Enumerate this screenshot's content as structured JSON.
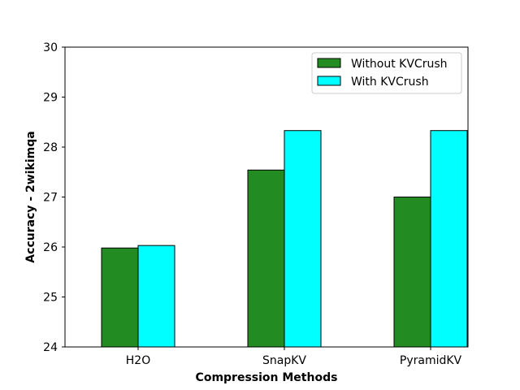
{
  "chart_data": {
    "type": "bar",
    "title": "",
    "xlabel": "Compression Methods",
    "ylabel": "Accuracy - 2wikimqa",
    "categories": [
      "H2O",
      "SnapKV",
      "PyramidKV"
    ],
    "series": [
      {
        "name": "Without KVCrush",
        "color": "#228b22",
        "values": [
          25.98,
          27.54,
          27.0
        ]
      },
      {
        "name": "With KVCrush",
        "color": "#00ffff",
        "values": [
          26.03,
          28.33,
          28.33
        ]
      }
    ],
    "ylim": [
      24,
      30
    ],
    "yticks": [
      24,
      25,
      26,
      27,
      28,
      29,
      30
    ],
    "yticks_labels": [
      "24",
      "25",
      "26",
      "27",
      "28",
      "29",
      "30"
    ],
    "grid": false,
    "legend_position": "top-right"
  }
}
